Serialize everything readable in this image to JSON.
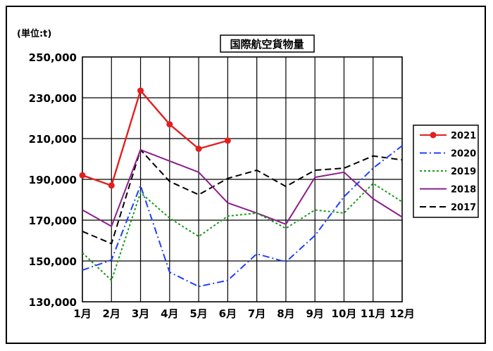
{
  "chart_data": {
    "type": "line",
    "title": "国際航空貨物量",
    "unit_label": "(単位:t)",
    "xlabel": "",
    "ylabel": "",
    "categories": [
      "1月",
      "2月",
      "3月",
      "4月",
      "5月",
      "6月",
      "7月",
      "8月",
      "9月",
      "10月",
      "11月",
      "12月"
    ],
    "ylim": [
      130000,
      250000
    ],
    "yticks": [
      130000,
      150000,
      170000,
      190000,
      210000,
      230000,
      250000
    ],
    "ytick_labels": [
      "130,000",
      "150,000",
      "170,000",
      "190,000",
      "210,000",
      "230,000",
      "250,000"
    ],
    "grid": true,
    "legend_position": "right",
    "series": [
      {
        "name": "2021",
        "color": "#e02020",
        "style": "solid-marker",
        "values": [
          192000,
          187000,
          233500,
          217000,
          205000,
          209000,
          null,
          null,
          null,
          null,
          null,
          null
        ]
      },
      {
        "name": "2020",
        "color": "#1f3fff",
        "style": "dashdot",
        "values": [
          145500,
          150500,
          187000,
          144500,
          137500,
          140500,
          153500,
          149500,
          162500,
          181500,
          195500,
          206500
        ]
      },
      {
        "name": "2019",
        "color": "#1a9a1a",
        "style": "dotted",
        "values": [
          154000,
          140500,
          183500,
          171000,
          162000,
          172000,
          173500,
          166000,
          175000,
          173500,
          188000,
          179000
        ]
      },
      {
        "name": "2018",
        "color": "#8b1f8b",
        "style": "solid",
        "values": [
          175000,
          167000,
          204500,
          199000,
          193500,
          178500,
          173500,
          168000,
          191000,
          193500,
          180500,
          171500
        ]
      },
      {
        "name": "2017",
        "color": "#000000",
        "style": "dashed",
        "values": [
          164500,
          158500,
          204500,
          189000,
          182500,
          190500,
          194500,
          186500,
          194500,
          195500,
          201500,
          199500
        ]
      }
    ]
  }
}
